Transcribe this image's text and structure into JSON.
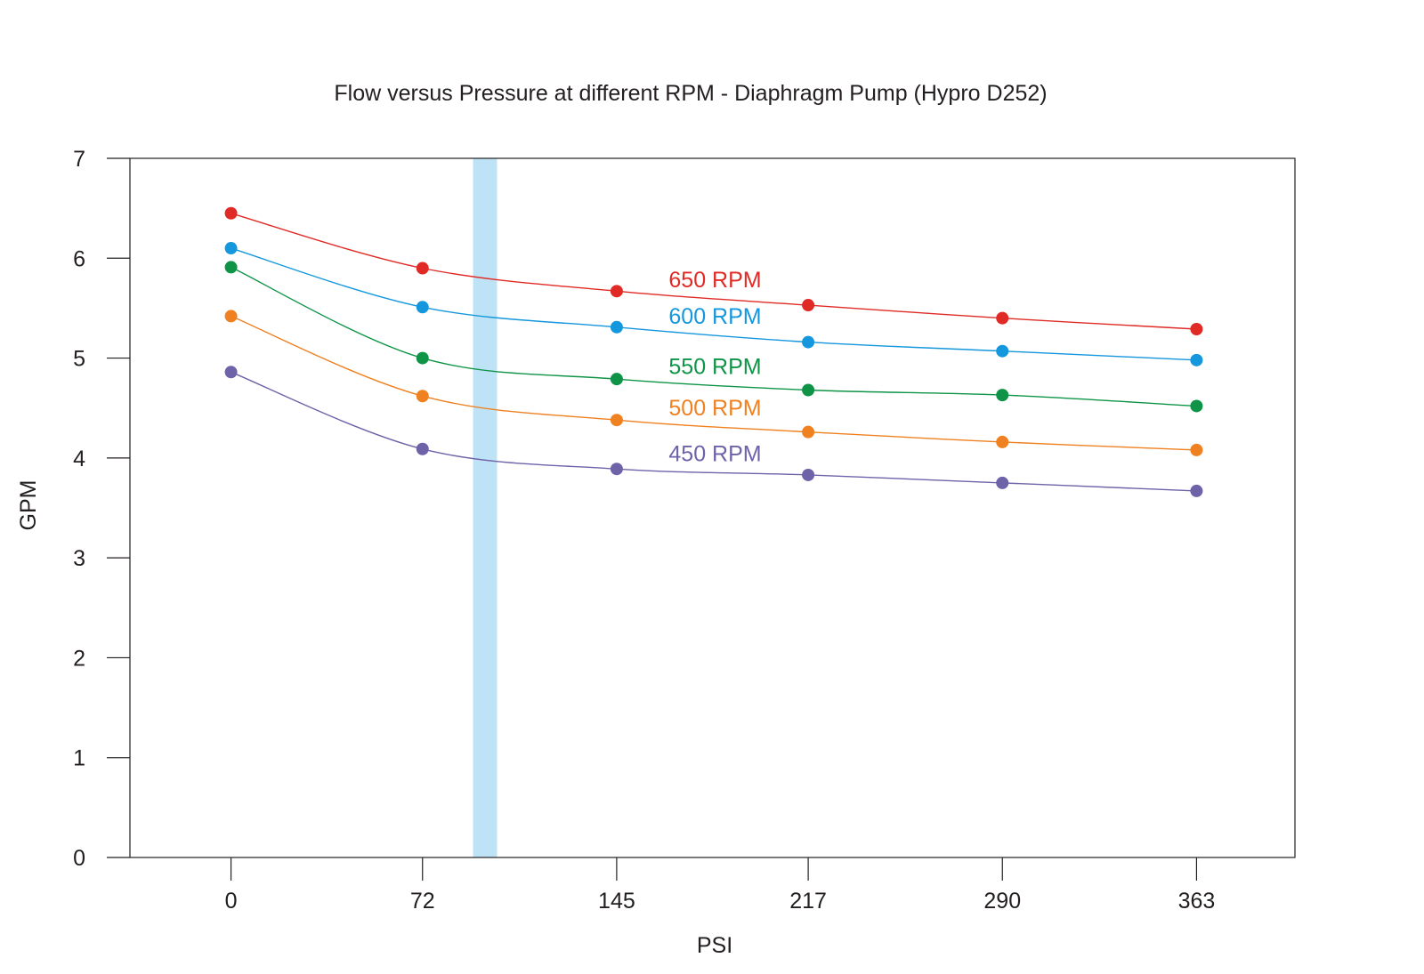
{
  "chart_data": {
    "type": "line",
    "title": "Flow versus Pressure at different RPM - Diaphragm Pump (Hypro D252)",
    "xlabel": "PSI",
    "ylabel": "GPM",
    "x": [
      0,
      72,
      145,
      217,
      290,
      363
    ],
    "x_tick_labels": [
      "0",
      "72",
      "145",
      "217",
      "290",
      "363"
    ],
    "y_ticks": [
      0,
      1,
      2,
      3,
      4,
      5,
      6,
      7
    ],
    "y_tick_labels": [
      "0",
      "1",
      "2",
      "3",
      "4",
      "5",
      "6",
      "7"
    ],
    "xlim": [
      -38,
      400
    ],
    "ylim": [
      0,
      7
    ],
    "grid": false,
    "highlight_band": {
      "x_from": 91,
      "x_to": 100,
      "color": "#bfe3f6"
    },
    "series": [
      {
        "name": "650 RPM",
        "label": "650 RPM",
        "color": "#e02a26",
        "values": [
          6.45,
          5.9,
          5.67,
          5.53,
          5.4,
          5.29
        ]
      },
      {
        "name": "600 RPM",
        "label": "600 RPM",
        "color": "#1497dc",
        "values": [
          6.1,
          5.51,
          5.31,
          5.16,
          5.07,
          4.98
        ]
      },
      {
        "name": "550 RPM",
        "label": "550 RPM",
        "color": "#0f9447",
        "values": [
          5.91,
          5.0,
          4.79,
          4.68,
          4.63,
          4.52
        ]
      },
      {
        "name": "500 RPM",
        "label": "500 RPM",
        "color": "#ef8121",
        "values": [
          5.42,
          4.62,
          4.38,
          4.26,
          4.16,
          4.08
        ]
      },
      {
        "name": "450 RPM",
        "label": "450 RPM",
        "color": "#6e62a8",
        "values": [
          4.86,
          4.09,
          3.89,
          3.83,
          3.75,
          3.67
        ]
      }
    ]
  }
}
